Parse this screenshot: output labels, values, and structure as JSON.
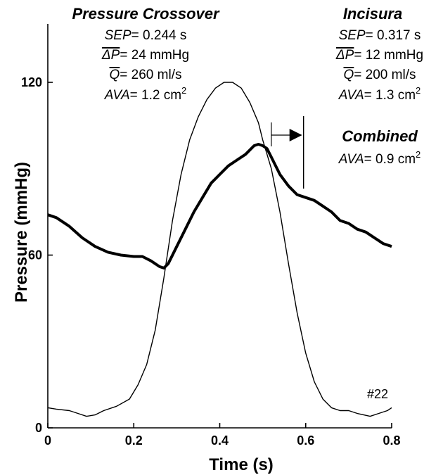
{
  "chart_data": {
    "type": "line",
    "xlabel": "Time (s)",
    "ylabel": "Pressure (mmHg)",
    "xlim": [
      0,
      0.8
    ],
    "ylim": [
      0,
      140
    ],
    "x_ticks": [
      "0",
      "0.2",
      "0.4",
      "0.6",
      "0.8"
    ],
    "y_ticks": [
      "0",
      "60",
      "120"
    ],
    "grid": false,
    "legend": "none",
    "series": [
      {
        "style": "thin",
        "points": [
          [
            0.0,
            7
          ],
          [
            0.02,
            6.5
          ],
          [
            0.05,
            6
          ],
          [
            0.07,
            5
          ],
          [
            0.09,
            4
          ],
          [
            0.11,
            4.5
          ],
          [
            0.13,
            6
          ],
          [
            0.16,
            7.5
          ],
          [
            0.19,
            10
          ],
          [
            0.21,
            15
          ],
          [
            0.23,
            22
          ],
          [
            0.25,
            34
          ],
          [
            0.27,
            52
          ],
          [
            0.29,
            72
          ],
          [
            0.31,
            88
          ],
          [
            0.33,
            100
          ],
          [
            0.35,
            108
          ],
          [
            0.37,
            114
          ],
          [
            0.39,
            118
          ],
          [
            0.41,
            120
          ],
          [
            0.43,
            120
          ],
          [
            0.45,
            118
          ],
          [
            0.47,
            113
          ],
          [
            0.49,
            106
          ],
          [
            0.5,
            100
          ],
          [
            0.52,
            90
          ],
          [
            0.54,
            75
          ],
          [
            0.56,
            57
          ],
          [
            0.58,
            40
          ],
          [
            0.6,
            26
          ],
          [
            0.62,
            16
          ],
          [
            0.64,
            10
          ],
          [
            0.66,
            7
          ],
          [
            0.68,
            6
          ],
          [
            0.7,
            6
          ],
          [
            0.72,
            5
          ],
          [
            0.75,
            4
          ],
          [
            0.77,
            5
          ],
          [
            0.79,
            6
          ],
          [
            0.8,
            7
          ]
        ]
      },
      {
        "style": "thick",
        "points": [
          [
            0.0,
            74
          ],
          [
            0.02,
            73
          ],
          [
            0.05,
            70
          ],
          [
            0.08,
            66
          ],
          [
            0.11,
            63
          ],
          [
            0.14,
            61
          ],
          [
            0.17,
            60
          ],
          [
            0.2,
            59.5
          ],
          [
            0.22,
            59.5
          ],
          [
            0.24,
            58
          ],
          [
            0.26,
            56
          ],
          [
            0.27,
            55.5
          ],
          [
            0.28,
            57
          ],
          [
            0.3,
            63
          ],
          [
            0.32,
            69
          ],
          [
            0.34,
            75
          ],
          [
            0.36,
            80
          ],
          [
            0.38,
            85
          ],
          [
            0.4,
            88
          ],
          [
            0.42,
            91
          ],
          [
            0.44,
            93
          ],
          [
            0.46,
            95
          ],
          [
            0.48,
            98
          ],
          [
            0.49,
            98.5
          ],
          [
            0.5,
            98
          ],
          [
            0.51,
            97
          ],
          [
            0.52,
            94
          ],
          [
            0.54,
            88
          ],
          [
            0.56,
            84
          ],
          [
            0.58,
            81
          ],
          [
            0.6,
            80
          ],
          [
            0.62,
            79
          ],
          [
            0.64,
            77
          ],
          [
            0.66,
            75
          ],
          [
            0.68,
            72
          ],
          [
            0.7,
            71
          ],
          [
            0.72,
            69
          ],
          [
            0.74,
            68
          ],
          [
            0.76,
            66
          ],
          [
            0.78,
            64
          ],
          [
            0.8,
            63
          ]
        ]
      }
    ],
    "annotations": {
      "left_block": {
        "title": "Pressure Crossover",
        "sep_label": "SEP",
        "sep_value": "= 0.244 s",
        "dp_label": "ΔP",
        "dp_value": "= 24 mmHg",
        "q_label": "Q",
        "q_value": "= 260 ml/s",
        "ava_label": "AVA",
        "ava_value": "= 1.2 cm",
        "ava_exp": "2"
      },
      "right_block": {
        "title": "Incisura",
        "sep_label": "SEP",
        "sep_value": "= 0.317 s",
        "dp_label": "ΔP",
        "dp_value": "= 12 mmHg",
        "q_label": "Q",
        "q_value": "= 200 ml/s",
        "ava_label": "AVA",
        "ava_value": "= 1.3 cm",
        "ava_exp": "2"
      },
      "combined_block": {
        "title": "Combined",
        "ava_label": "AVA",
        "ava_value": "= 0.9 cm",
        "ava_exp": "2"
      },
      "case_label": "#22",
      "marker_lines_x": [
        0.52,
        0.595
      ]
    }
  }
}
